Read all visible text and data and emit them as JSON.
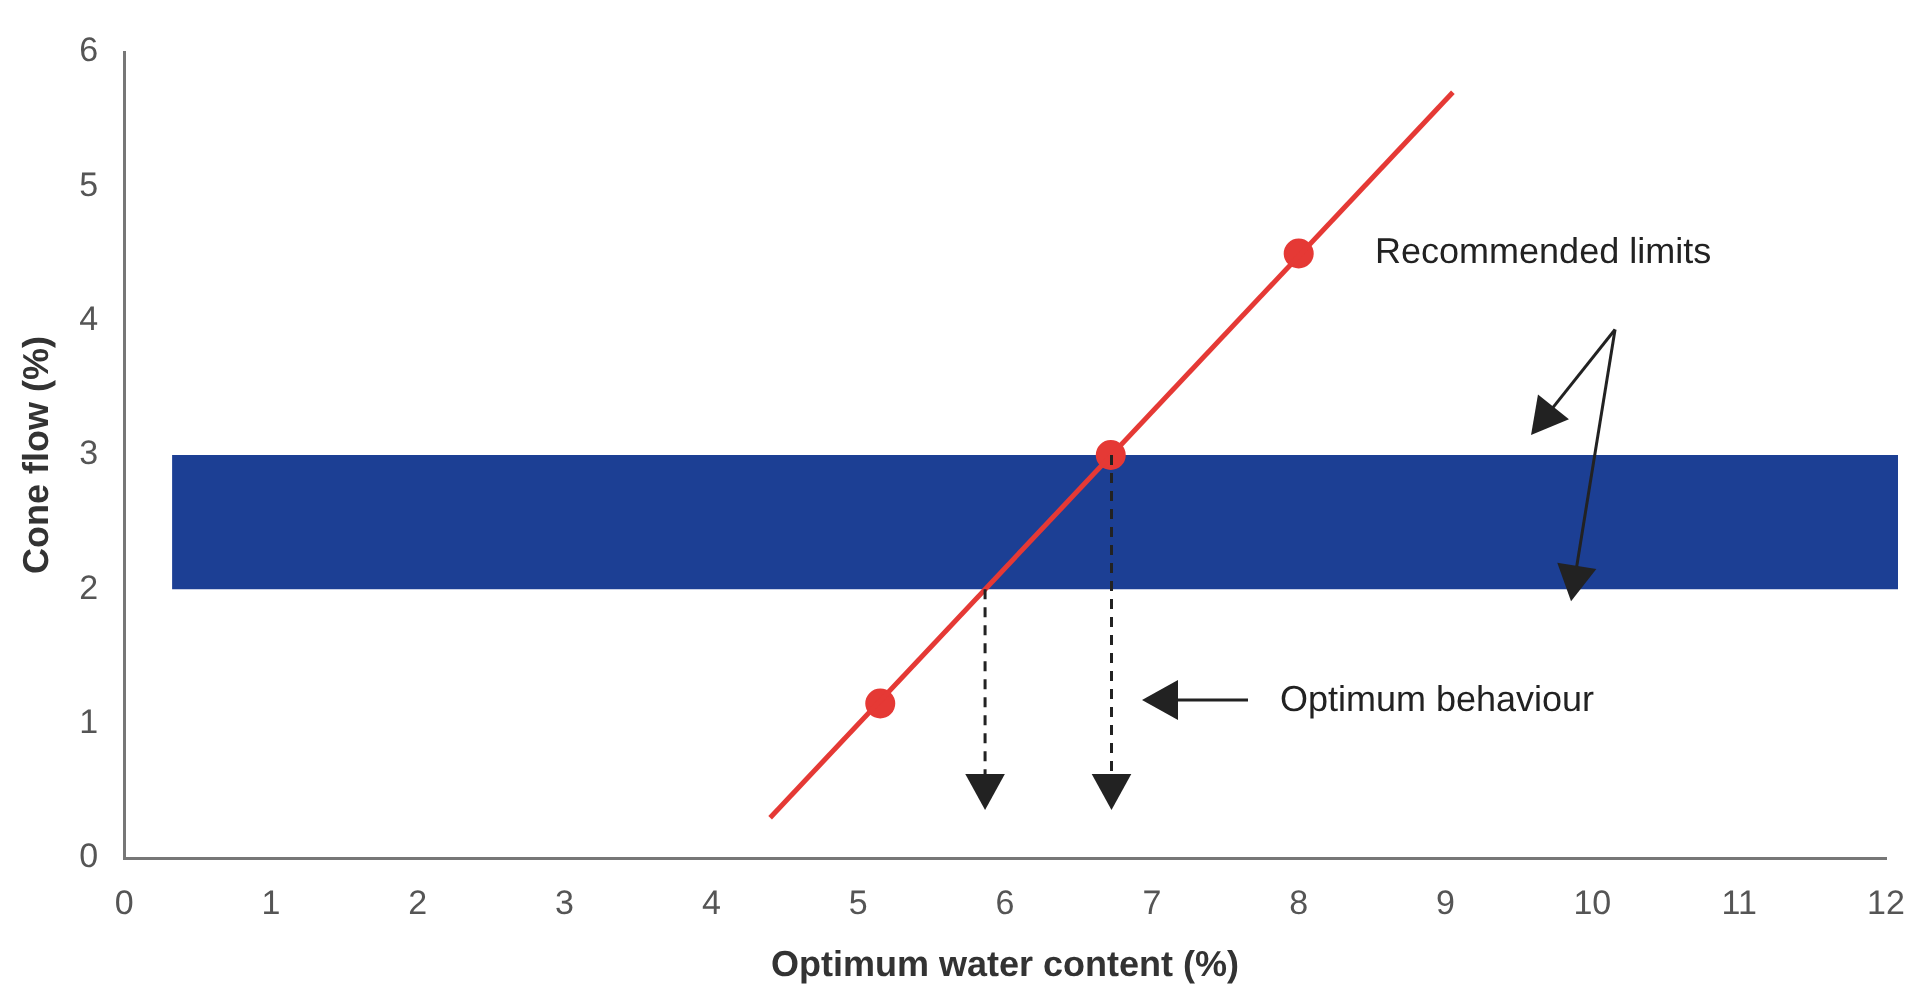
{
  "chart_data": {
    "type": "scatter",
    "xlabel": "Optimum water content (%)",
    "ylabel": "Cone flow (%)",
    "xlim": [
      0,
      12
    ],
    "xticks": [
      0,
      1,
      2,
      3,
      4,
      5,
      6,
      7,
      8,
      9,
      10,
      11,
      12
    ],
    "ylim": [
      0,
      6
    ],
    "yticks": [
      0,
      1,
      2,
      3,
      4,
      5,
      6
    ],
    "grid": false,
    "legend": false,
    "series": [
      {
        "type": "line",
        "x": [
          4.4,
          9.05
        ],
        "values": [
          0.3,
          5.7
        ],
        "color": "#e53935",
        "marker": "none"
      },
      {
        "type": "scatter",
        "x": [
          5.15,
          6.72,
          8.0
        ],
        "values": [
          1.15,
          3.0,
          4.5
        ],
        "color": "#e53935",
        "marker": "circle"
      }
    ],
    "bands": [
      {
        "axis": "y",
        "from": 2,
        "to": 3,
        "color": "#1c3f94"
      }
    ],
    "annotations": [
      "Recommended limits",
      "Optimum behaviour"
    ]
  }
}
